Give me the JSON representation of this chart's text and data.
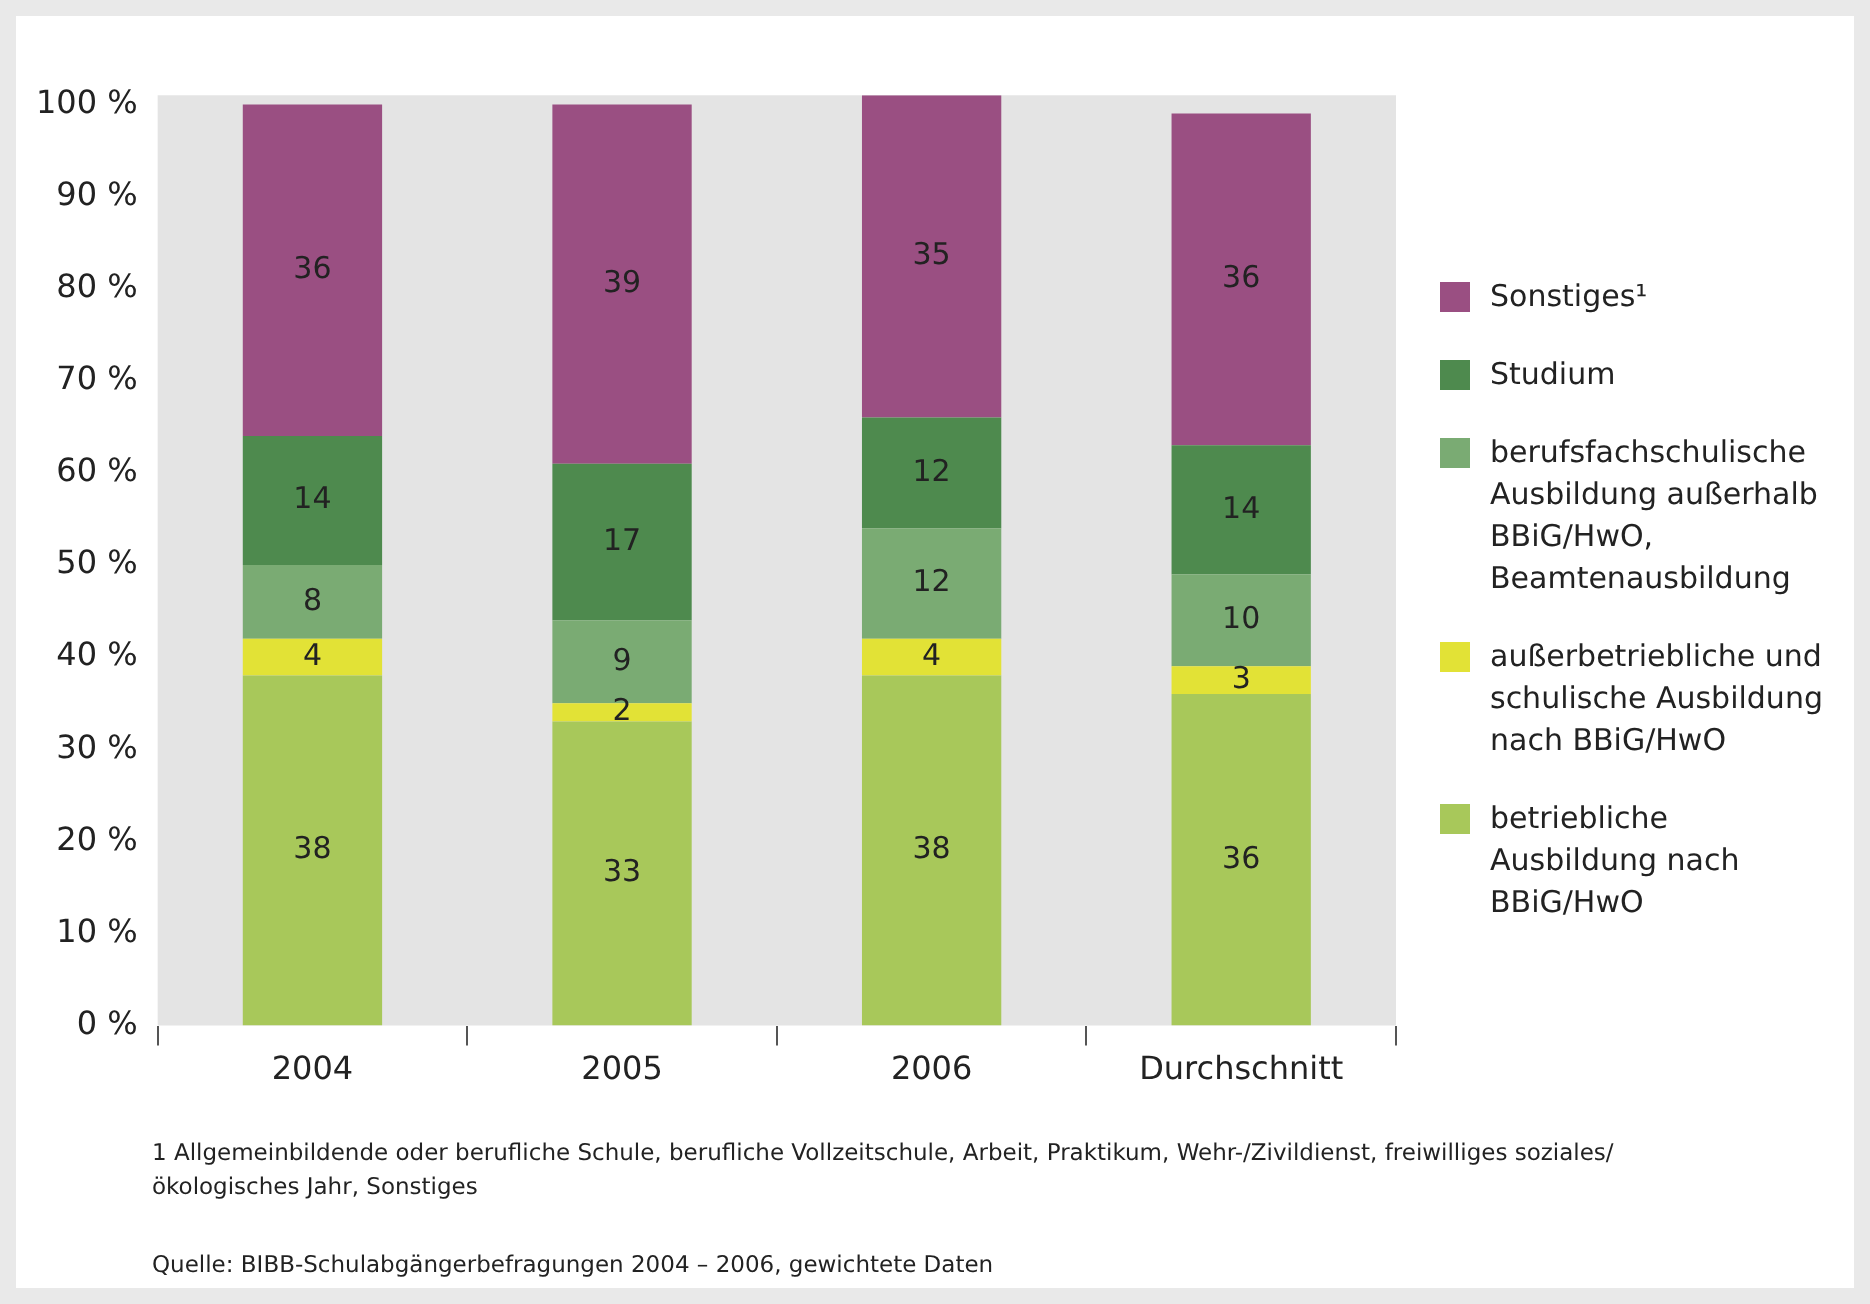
{
  "chart_data": {
    "type": "bar",
    "stacked": true,
    "categories": [
      "2004",
      "2005",
      "2006",
      "Durchschnitt"
    ],
    "series": [
      {
        "name": "betriebliche Ausbildung nach BBiG/HwO",
        "color": "#a8c85a",
        "values": [
          38,
          33,
          38,
          36
        ]
      },
      {
        "name": "außerbetriebliche und schulische Ausbildung nach BBiG/HwO",
        "color": "#e2e236",
        "values": [
          4,
          2,
          4,
          3
        ]
      },
      {
        "name": "berufsfachschulische Ausbildung außerhalb BBiG/HwO, Beamtenausbildung",
        "color": "#7aab73",
        "values": [
          8,
          9,
          12,
          10
        ]
      },
      {
        "name": "Studium",
        "color": "#4e8a4e",
        "values": [
          14,
          17,
          12,
          14
        ]
      },
      {
        "name": "Sonstiges¹",
        "color": "#9a4f82",
        "values": [
          36,
          39,
          35,
          36
        ]
      }
    ],
    "ylim": [
      0,
      101
    ],
    "yticks": [
      {
        "value": 0,
        "label": "0 %"
      },
      {
        "value": 10,
        "label": "10 %"
      },
      {
        "value": 20,
        "label": "20 %"
      },
      {
        "value": 30,
        "label": "30 %"
      },
      {
        "value": 40,
        "label": "40 %"
      },
      {
        "value": 50,
        "label": "50 %"
      },
      {
        "value": 60,
        "label": "60 %"
      },
      {
        "value": 70,
        "label": "70 %"
      },
      {
        "value": 80,
        "label": "80 %"
      },
      {
        "value": 90,
        "label": "90 %"
      },
      {
        "value": 100,
        "label": "100 %"
      }
    ],
    "grid": false,
    "legend": "right",
    "data_labels": true,
    "annotations": [
      "1 Allgemeinbildende oder berufliche Schule, berufliche Vollzeitschule, Arbeit, Praktikum, Wehr-/Zivildienst, freiwilliges soziales/ökologisches Jahr, Sonstiges",
      "Quelle: BIBB-Schulabgängerbefragungen 2004 – 2006, gewichtete Daten"
    ]
  }
}
